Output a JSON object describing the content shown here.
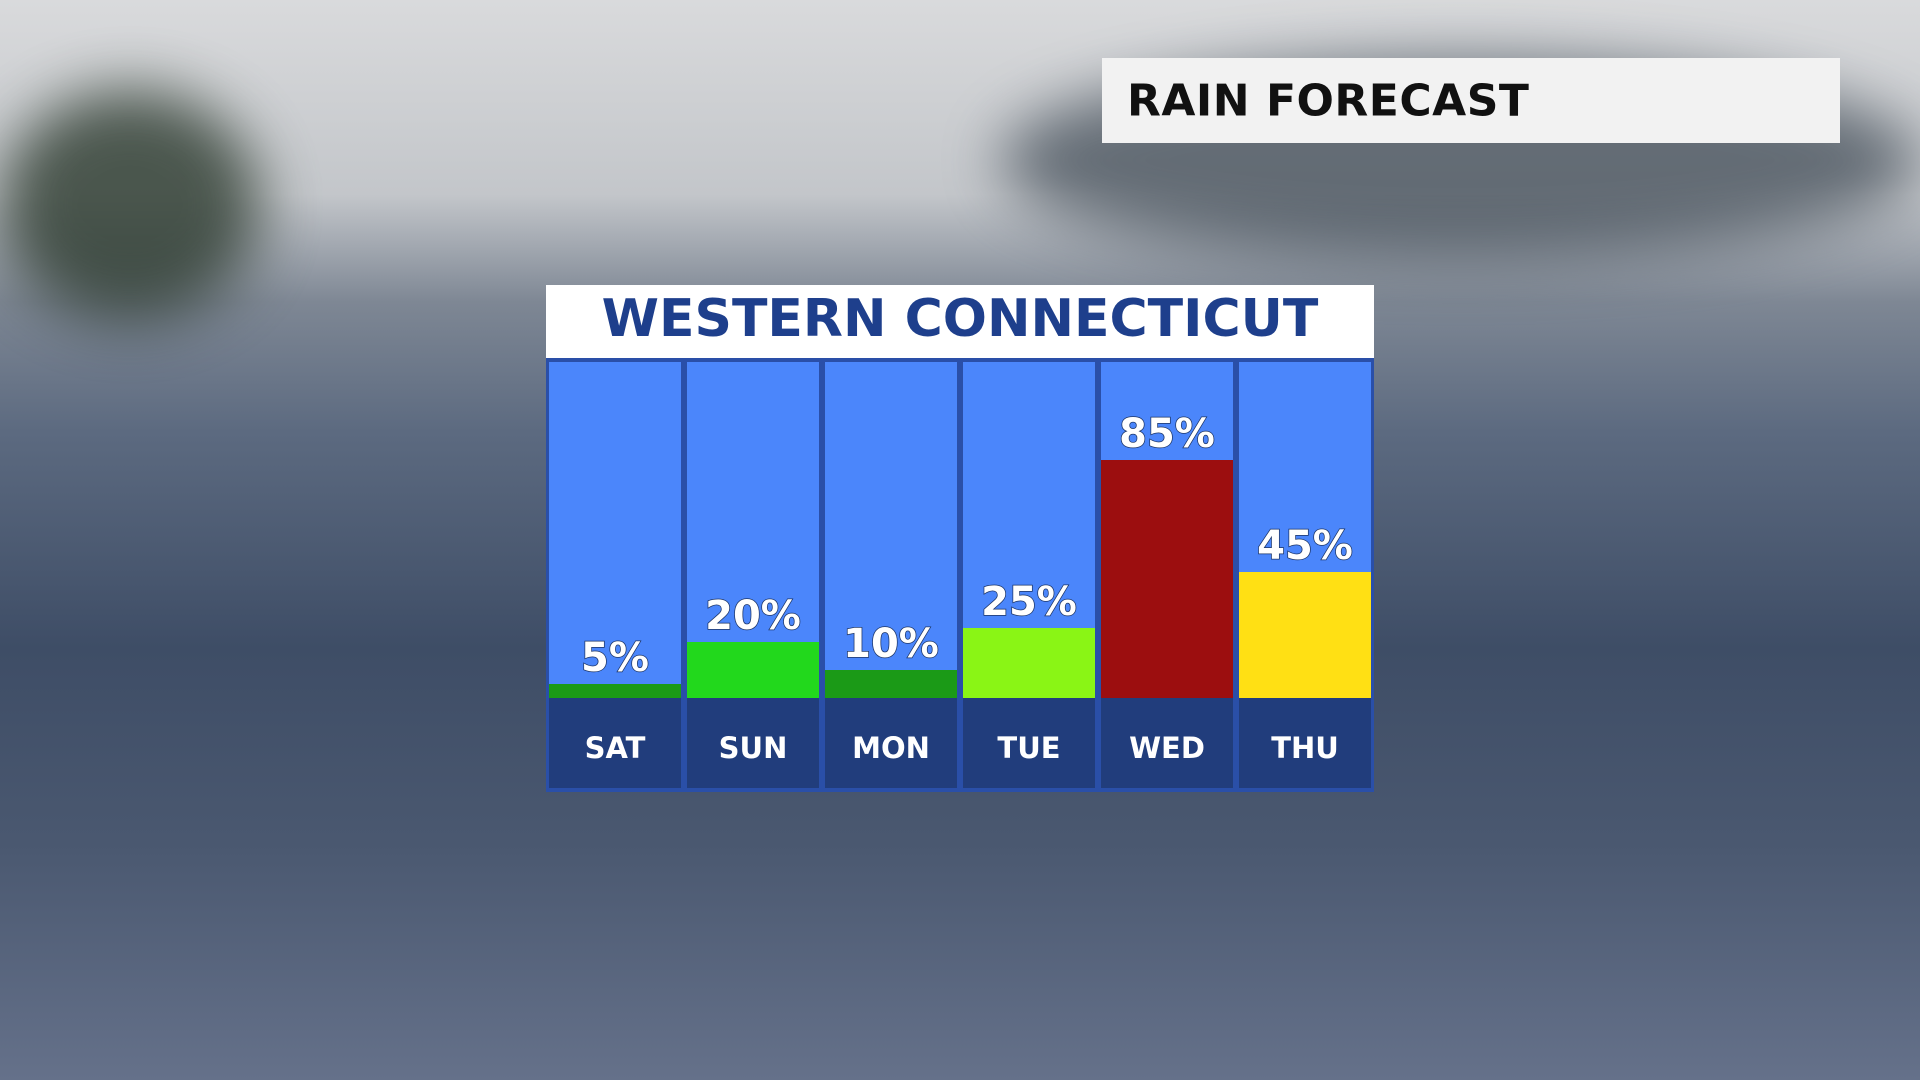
{
  "header": {
    "title": "RAIN FORECAST"
  },
  "chart_data": {
    "type": "bar",
    "title": "WESTERN CONNECTICUT",
    "categories": [
      "SAT",
      "SUN",
      "MON",
      "TUE",
      "WED",
      "THU"
    ],
    "values": [
      5,
      20,
      10,
      25,
      85,
      45
    ],
    "value_labels": [
      "5%",
      "20%",
      "10%",
      "25%",
      "85%",
      "45%"
    ],
    "colors": [
      "#1b9a17",
      "#22d81c",
      "#1b9a17",
      "#8af515",
      "#9c0e0f",
      "#ffe014"
    ],
    "ylim": [
      0,
      120
    ]
  }
}
